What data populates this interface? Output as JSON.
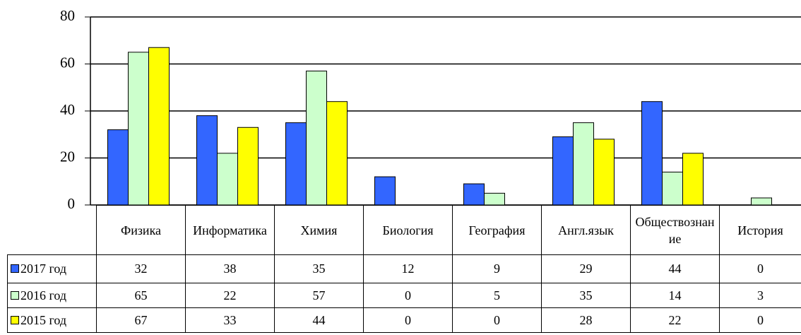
{
  "chart_data": {
    "type": "bar",
    "categories": [
      "Физика",
      "Информатика",
      "Химия",
      "Биология",
      "География",
      "Англ.язык",
      "Обществознание",
      "История"
    ],
    "series": [
      {
        "name": "2017 год",
        "color": "#3366ff",
        "values": [
          32,
          38,
          35,
          12,
          9,
          29,
          44,
          0
        ]
      },
      {
        "name": "2016 год",
        "color": "#ccffcc",
        "values": [
          65,
          22,
          57,
          0,
          5,
          35,
          14,
          3
        ]
      },
      {
        "name": "2015 год",
        "color": "#ffff00",
        "values": [
          67,
          33,
          44,
          0,
          0,
          28,
          22,
          0
        ]
      }
    ],
    "ylim": [
      0,
      80
    ],
    "yticks": [
      0,
      20,
      40,
      60,
      80
    ],
    "grid": true
  }
}
